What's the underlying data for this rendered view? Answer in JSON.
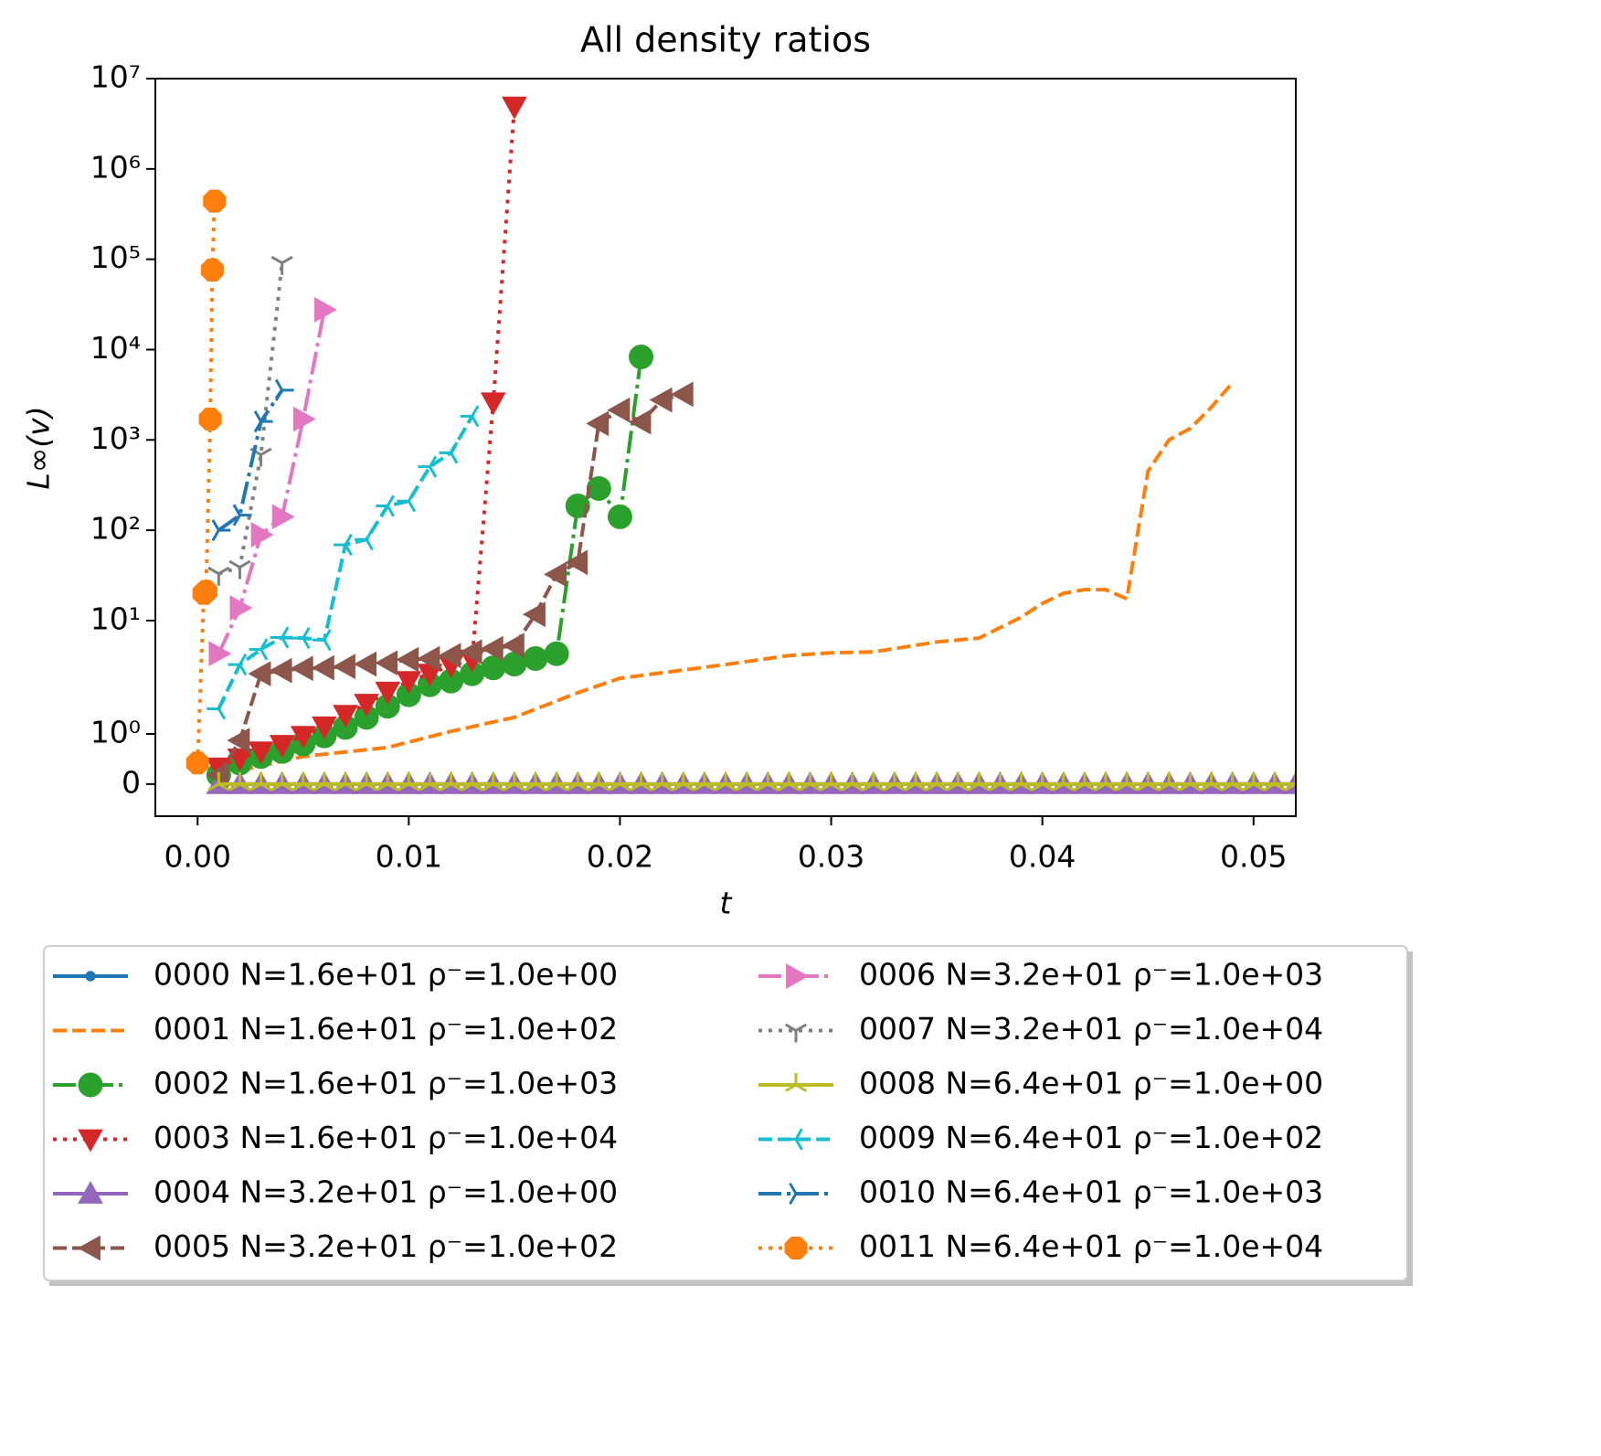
{
  "chart_data": {
    "type": "line",
    "title": "All density ratios",
    "xlabel": "t",
    "ylabel": "L∞(v)",
    "yscale": "symlog",
    "linthresh": 2,
    "xlim": [
      -0.002,
      0.052
    ],
    "ylim": [
      -0.64,
      10000000
    ],
    "xticks": [
      {
        "value": 0,
        "label": "0.00"
      },
      {
        "value": 0.01,
        "label": "0.01"
      },
      {
        "value": 0.02,
        "label": "0.02"
      },
      {
        "value": 0.03,
        "label": "0.03"
      },
      {
        "value": 0.04,
        "label": "0.04"
      },
      {
        "value": 0.05,
        "label": "0.05"
      }
    ],
    "yticks": [
      0,
      {
        "value": 1,
        "label": "10⁰"
      },
      {
        "value": 10,
        "label": "10¹"
      },
      {
        "value": 100,
        "label": "10²"
      },
      {
        "value": 1000,
        "label": "10³"
      },
      {
        "value": 10000,
        "label": "10⁴"
      },
      {
        "value": 100000,
        "label": "10⁵"
      },
      {
        "value": 1000000,
        "label": "10⁶"
      },
      {
        "value": 10000000,
        "label": "10⁷"
      }
    ],
    "legend": {
      "position": "below",
      "columns": 2
    },
    "series": [
      {
        "name": "0000 N=1.6e+01 ρ⁻=1.0e+00",
        "color": "#1f77b4",
        "linestyle": "solid",
        "marker": ".",
        "x": [
          0.001,
          0.002,
          0.003,
          0.004,
          0.005,
          0.006,
          0.007,
          0.008,
          0.009,
          0.01,
          0.011,
          0.012,
          0.013,
          0.014,
          0.015,
          0.016,
          0.017,
          0.018,
          0.019,
          0.02,
          0.021,
          0.022,
          0.023,
          0.024,
          0.025,
          0.026,
          0.027,
          0.028,
          0.029,
          0.03,
          0.031,
          0.032,
          0.033,
          0.034,
          0.035,
          0.036,
          0.037,
          0.038,
          0.039,
          0.04,
          0.041,
          0.042,
          0.043,
          0.044,
          0.045,
          0.046,
          0.047,
          0.048,
          0.049,
          0.05,
          0.051,
          0.052
        ],
        "values": [
          0,
          0,
          0,
          0,
          0,
          0,
          0,
          0,
          0,
          0,
          0,
          0,
          0,
          0,
          0,
          0,
          0,
          0,
          0,
          0,
          0,
          0,
          0,
          0,
          0,
          0,
          0,
          0,
          0,
          0,
          0,
          0,
          0,
          0,
          0,
          0,
          0,
          0,
          0,
          0,
          0,
          0,
          0,
          0,
          0,
          0,
          0,
          0,
          0,
          0,
          0,
          0
        ]
      },
      {
        "name": "0001 N=1.6e+01 ρ⁻=1.0e+02",
        "color": "#ff7f0e",
        "linestyle": "dashed",
        "marker": "none",
        "x": [
          0.002,
          0.005,
          0.009,
          0.012,
          0.015,
          0.018,
          0.02,
          0.025,
          0.028,
          0.03,
          0.032,
          0.035,
          0.037,
          0.039,
          0.04,
          0.041,
          0.042,
          0.043,
          0.044,
          0.045,
          0.046,
          0.047,
          0.048,
          0.049
        ],
        "values": [
          0.27,
          0.55,
          0.73,
          1.05,
          1.33,
          1.82,
          2.3,
          3.26,
          4.1,
          4.4,
          4.5,
          5.8,
          6.4,
          10.9,
          15.5,
          20,
          22,
          22,
          17.4,
          450,
          1000,
          1340,
          2300,
          4300
        ]
      },
      {
        "name": "0002 N=1.6e+01 ρ⁻=1.0e+03",
        "color": "#2ca02c",
        "linestyle": "dashdot",
        "marker": "o",
        "x": [
          0.001,
          0.002,
          0.003,
          0.004,
          0.005,
          0.006,
          0.007,
          0.008,
          0.009,
          0.01,
          0.011,
          0.012,
          0.013,
          0.014,
          0.015,
          0.016,
          0.017,
          0.018,
          0.019,
          0.02,
          0.021
        ],
        "values": [
          0.18,
          0.42,
          0.55,
          0.65,
          0.8,
          0.96,
          1.13,
          1.33,
          1.55,
          1.78,
          1.98,
          2.14,
          2.58,
          3.0,
          3.3,
          3.8,
          4.3,
          186,
          290,
          141,
          8300
        ]
      },
      {
        "name": "0003 N=1.6e+01 ρ⁻=1.0e+04",
        "color": "#d62728",
        "linestyle": "dotted",
        "marker": "v",
        "x": [
          0.001,
          0.002,
          0.003,
          0.004,
          0.005,
          0.006,
          0.007,
          0.008,
          0.009,
          0.01,
          0.011,
          0.012,
          0.013,
          0.014,
          0.015
        ],
        "values": [
          0.33,
          0.51,
          0.65,
          0.78,
          0.96,
          1.15,
          1.38,
          1.6,
          1.84,
          2.14,
          2.58,
          3.2,
          3.7,
          2600,
          4900000
        ]
      },
      {
        "name": "0004 N=3.2e+01 ρ⁻=1.0e+00",
        "color": "#9467bd",
        "linestyle": "solid",
        "marker": "^",
        "x": [
          0.001,
          0.002,
          0.003,
          0.004,
          0.005,
          0.006,
          0.007,
          0.008,
          0.009,
          0.01,
          0.011,
          0.012,
          0.013,
          0.014,
          0.015,
          0.016,
          0.017,
          0.018,
          0.019,
          0.02,
          0.021,
          0.022,
          0.023,
          0.024,
          0.025,
          0.026,
          0.027,
          0.028,
          0.029,
          0.03,
          0.031,
          0.032,
          0.033,
          0.034,
          0.035,
          0.036,
          0.037,
          0.038,
          0.039,
          0.04,
          0.041,
          0.042,
          0.043,
          0.044,
          0.045,
          0.046,
          0.047,
          0.048,
          0.049,
          0.05,
          0.051,
          0.052
        ],
        "values": [
          0,
          0,
          0,
          0,
          0,
          0,
          0,
          0,
          0,
          0,
          0,
          0,
          0,
          0,
          0,
          0,
          0,
          0,
          0,
          0,
          0,
          0,
          0,
          0,
          0,
          0,
          0,
          0,
          0,
          0,
          0,
          0,
          0,
          0,
          0,
          0,
          0,
          0,
          0,
          0,
          0,
          0,
          0,
          0,
          0,
          0,
          0,
          0,
          0,
          0,
          0,
          0
        ]
      },
      {
        "name": "0005 N=3.2e+01 ρ⁻=1.0e+02",
        "color": "#8c564b",
        "linestyle": "dashed",
        "marker": "<",
        "x": [
          0.001,
          0.002,
          0.003,
          0.004,
          0.005,
          0.006,
          0.007,
          0.008,
          0.009,
          0.01,
          0.011,
          0.012,
          0.013,
          0.014,
          0.015,
          0.016,
          0.017,
          0.018,
          0.019,
          0.02,
          0.021,
          0.022,
          0.023
        ],
        "values": [
          0.18,
          0.87,
          2.58,
          2.8,
          2.96,
          3.0,
          3.1,
          3.3,
          3.4,
          3.7,
          3.8,
          4.1,
          4.5,
          4.9,
          5.3,
          11.7,
          32.5,
          44,
          1520,
          2140,
          1580,
          2770,
          3200
        ]
      },
      {
        "name": "0006 N=3.2e+01 ρ⁻=1.0e+03",
        "color": "#e377c2",
        "linestyle": "dashdot",
        "marker": ">",
        "x": [
          0.001,
          0.002,
          0.003,
          0.004,
          0.005,
          0.006
        ],
        "values": [
          4.3,
          13.8,
          89,
          141,
          1700,
          27600
        ]
      },
      {
        "name": "0007 N=3.2e+01 ρ⁻=1.0e+04",
        "color": "#7f7f7f",
        "linestyle": "dotted",
        "marker": "1",
        "x": [
          0.001,
          0.002,
          0.003,
          0.004
        ],
        "values": [
          33,
          39,
          686,
          91000
        ]
      },
      {
        "name": "0008 N=6.4e+01 ρ⁻=1.0e+00",
        "color": "#bcbd22",
        "linestyle": "solid",
        "marker": "2",
        "x": [
          0.001,
          0.002,
          0.003,
          0.004,
          0.005,
          0.006,
          0.007,
          0.008,
          0.009,
          0.01,
          0.011,
          0.012,
          0.013,
          0.014,
          0.015,
          0.016,
          0.017,
          0.018,
          0.019,
          0.02,
          0.021,
          0.022,
          0.023,
          0.024,
          0.025,
          0.026,
          0.027,
          0.028,
          0.029,
          0.03,
          0.031,
          0.032,
          0.033,
          0.034,
          0.035,
          0.036,
          0.037,
          0.038,
          0.039,
          0.04,
          0.041,
          0.042,
          0.043,
          0.044,
          0.045,
          0.046,
          0.047,
          0.048,
          0.049,
          0.05,
          0.051,
          0.052
        ],
        "values": [
          0,
          0,
          0,
          0,
          0,
          0,
          0,
          0,
          0,
          0,
          0,
          0,
          0,
          0,
          0,
          0,
          0,
          0,
          0,
          0,
          0,
          0,
          0,
          0,
          0,
          0,
          0,
          0,
          0,
          0,
          0,
          0,
          0,
          0,
          0,
          0,
          0,
          0,
          0,
          0,
          0,
          0,
          0,
          0,
          0,
          0,
          0,
          0,
          0,
          0,
          0,
          0
        ]
      },
      {
        "name": "0009 N=6.4e+01 ρ⁻=1.0e+02",
        "color": "#17becf",
        "linestyle": "dashed",
        "marker": "3",
        "x": [
          0.001,
          0.002,
          0.003,
          0.004,
          0.005,
          0.006,
          0.007,
          0.008,
          0.009,
          0.01,
          0.011,
          0.012,
          0.013
        ],
        "values": [
          1.5,
          3.26,
          4.8,
          6.5,
          6.4,
          6.1,
          69,
          79,
          186,
          210,
          505,
          720,
          1830
        ]
      },
      {
        "name": "0010 N=6.4e+01 ρ⁻=1.0e+03",
        "color": "#1f77b4",
        "linestyle": "dashdot",
        "marker": "4",
        "x": [
          0.001,
          0.002,
          0.003,
          0.004
        ],
        "values": [
          100,
          147,
          1600,
          3560
        ]
      },
      {
        "name": "0011 N=6.4e+01 ρ⁻=1.0e+04",
        "color": "#ff7f0e",
        "linestyle": "dotted",
        "marker": "8",
        "x": [
          0,
          0.0003,
          0.0004,
          0.0006,
          0.0007,
          0.0008
        ],
        "values": [
          0.42,
          20,
          21,
          1700,
          76000,
          440000
        ]
      }
    ]
  }
}
